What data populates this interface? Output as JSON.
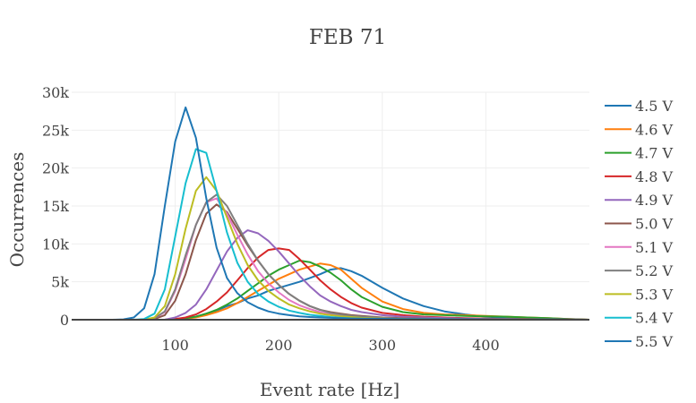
{
  "chart_data": {
    "type": "line",
    "title": "FEB 71",
    "xlabel": "Event rate [Hz]",
    "ylabel": "Occurrences",
    "xlim": [
      0,
      500
    ],
    "ylim": [
      0,
      30000
    ],
    "x_ticks": [
      100,
      200,
      300,
      400
    ],
    "x_tick_labels": [
      "100",
      "200",
      "300",
      "400"
    ],
    "y_ticks": [
      0,
      5000,
      10000,
      15000,
      20000,
      25000,
      30000
    ],
    "y_tick_labels": [
      "0",
      "5k",
      "10k",
      "15k",
      "20k",
      "25k",
      "30k"
    ],
    "grid": true,
    "legend_position": "right",
    "x": [
      0,
      20,
      40,
      50,
      60,
      70,
      80,
      90,
      100,
      110,
      120,
      130,
      140,
      150,
      160,
      170,
      180,
      190,
      200,
      210,
      220,
      230,
      240,
      250,
      260,
      270,
      280,
      300,
      320,
      340,
      360,
      380,
      400,
      420,
      440,
      460,
      480,
      500
    ],
    "series": [
      {
        "name": "4.5 V",
        "color": "#1f77b4",
        "values": [
          0,
          0,
          0,
          0,
          0,
          0,
          0,
          0,
          100,
          200,
          400,
          800,
          1200,
          1800,
          2200,
          2800,
          3200,
          3800,
          4200,
          4600,
          5000,
          5500,
          6000,
          6600,
          6800,
          6400,
          5800,
          4200,
          2800,
          1800,
          1100,
          700,
          400,
          250,
          150,
          100,
          50,
          0
        ]
      },
      {
        "name": "4.6 V",
        "color": "#ff7f0e",
        "values": [
          0,
          0,
          0,
          0,
          0,
          0,
          0,
          0,
          50,
          150,
          300,
          600,
          1000,
          1500,
          2200,
          3000,
          3800,
          4600,
          5400,
          6000,
          6600,
          7000,
          7400,
          7200,
          6600,
          5400,
          4200,
          2400,
          1400,
          900,
          700,
          600,
          500,
          400,
          300,
          200,
          100,
          0
        ]
      },
      {
        "name": "4.7 V",
        "color": "#2ca02c",
        "values": [
          0,
          0,
          0,
          0,
          0,
          0,
          0,
          0,
          80,
          200,
          400,
          800,
          1300,
          2000,
          2800,
          3800,
          4800,
          5800,
          6600,
          7200,
          7800,
          7600,
          7000,
          6200,
          5200,
          4000,
          3000,
          1700,
          1000,
          700,
          600,
          500,
          450,
          400,
          300,
          200,
          100,
          0
        ]
      },
      {
        "name": "4.8 V",
        "color": "#d62728",
        "values": [
          0,
          0,
          0,
          0,
          0,
          0,
          0,
          0,
          100,
          300,
          700,
          1400,
          2400,
          3600,
          5200,
          6800,
          8200,
          9200,
          9400,
          9200,
          8000,
          6600,
          5200,
          4000,
          3000,
          2200,
          1600,
          900,
          600,
          400,
          300,
          200,
          150,
          100,
          80,
          50,
          20,
          0
        ]
      },
      {
        "name": "4.9 V",
        "color": "#9467bd",
        "values": [
          0,
          0,
          0,
          0,
          0,
          0,
          0,
          0,
          300,
          900,
          2000,
          4000,
          6500,
          9000,
          10800,
          11800,
          11400,
          10400,
          9000,
          7400,
          5800,
          4400,
          3200,
          2400,
          1800,
          1300,
          1000,
          600,
          400,
          300,
          200,
          150,
          100,
          80,
          50,
          30,
          10,
          0
        ]
      },
      {
        "name": "5.0 V",
        "color": "#8c564b",
        "values": [
          0,
          0,
          0,
          0,
          0,
          0,
          100,
          600,
          2500,
          6000,
          10500,
          14000,
          15200,
          14200,
          12000,
          9800,
          7800,
          6000,
          4600,
          3400,
          2500,
          1800,
          1300,
          1000,
          800,
          600,
          500,
          300,
          200,
          150,
          100,
          80,
          60,
          40,
          30,
          20,
          10,
          0
        ]
      },
      {
        "name": "5.1 V",
        "color": "#e377c2",
        "values": [
          0,
          0,
          0,
          0,
          0,
          0,
          200,
          1000,
          3800,
          8000,
          12500,
          15500,
          16000,
          14000,
          11200,
          8600,
          6400,
          4800,
          3600,
          2600,
          1900,
          1400,
          1000,
          700,
          500,
          400,
          300,
          200,
          150,
          100,
          80,
          60,
          40,
          30,
          20,
          10,
          5,
          0
        ]
      },
      {
        "name": "5.2 V",
        "color": "#7f7f7f",
        "values": [
          0,
          0,
          0,
          0,
          0,
          0,
          200,
          1100,
          4000,
          8500,
          12500,
          15500,
          16500,
          15000,
          12500,
          10000,
          7800,
          6000,
          4600,
          3400,
          2500,
          1800,
          1300,
          900,
          700,
          500,
          400,
          250,
          150,
          100,
          80,
          60,
          40,
          30,
          20,
          10,
          5,
          0
        ]
      },
      {
        "name": "5.3 V",
        "color": "#bcbd22",
        "values": [
          0,
          0,
          0,
          0,
          0,
          0,
          300,
          1800,
          6000,
          12000,
          17000,
          18800,
          17000,
          13500,
          10000,
          7200,
          5200,
          3800,
          2800,
          2000,
          1500,
          1100,
          800,
          600,
          450,
          350,
          250,
          150,
          100,
          80,
          60,
          40,
          30,
          20,
          10,
          5,
          0,
          0
        ]
      },
      {
        "name": "5.4 V",
        "color": "#17becf",
        "values": [
          0,
          0,
          0,
          0,
          0,
          100,
          800,
          4000,
          11000,
          18000,
          22500,
          22000,
          17000,
          11500,
          7500,
          5000,
          3400,
          2400,
          1700,
          1200,
          900,
          650,
          500,
          350,
          250,
          180,
          120,
          80,
          50,
          30,
          20,
          10,
          5,
          0,
          0,
          0,
          0,
          0
        ]
      },
      {
        "name": "5.5 V",
        "color": "#1f77b4",
        "values": [
          0,
          0,
          0,
          50,
          300,
          1500,
          6000,
          15000,
          23500,
          28000,
          24000,
          16000,
          9500,
          5500,
          3500,
          2300,
          1600,
          1100,
          800,
          600,
          450,
          350,
          300,
          250,
          200,
          170,
          150,
          120,
          100,
          80,
          70,
          60,
          50,
          40,
          30,
          20,
          10,
          0
        ]
      }
    ]
  }
}
